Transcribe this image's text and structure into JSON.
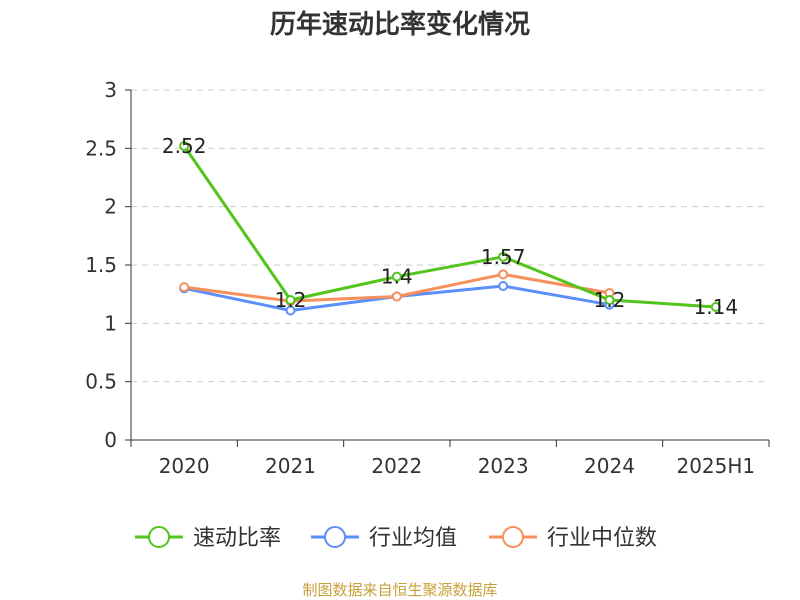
{
  "chart_data": {
    "type": "line",
    "title": "历年速动比率变化情况",
    "categories": [
      "2020",
      "2021",
      "2022",
      "2023",
      "2024",
      "2025H1"
    ],
    "ylim": [
      0,
      3
    ],
    "yticks": [
      "0",
      "0.5",
      "1",
      "1.5",
      "2",
      "2.5",
      "3"
    ],
    "grid": true,
    "legend_position": "bottom",
    "series": [
      {
        "name": "速动比率",
        "color": "#52c41a",
        "values": [
          2.52,
          1.2,
          1.4,
          1.57,
          1.2,
          1.14
        ],
        "labels": [
          "2.52",
          "1.2",
          "1.4",
          "1.57",
          "1.2",
          "1.14"
        ]
      },
      {
        "name": "行业均值",
        "color": "#5b8ff9",
        "values": [
          1.3,
          1.11,
          1.23,
          1.32,
          1.16,
          null
        ]
      },
      {
        "name": "行业中位数",
        "color": "#f6905a",
        "values": [
          1.31,
          1.19,
          1.23,
          1.42,
          1.26,
          null
        ]
      }
    ],
    "source": "制图数据来自恒生聚源数据库"
  }
}
